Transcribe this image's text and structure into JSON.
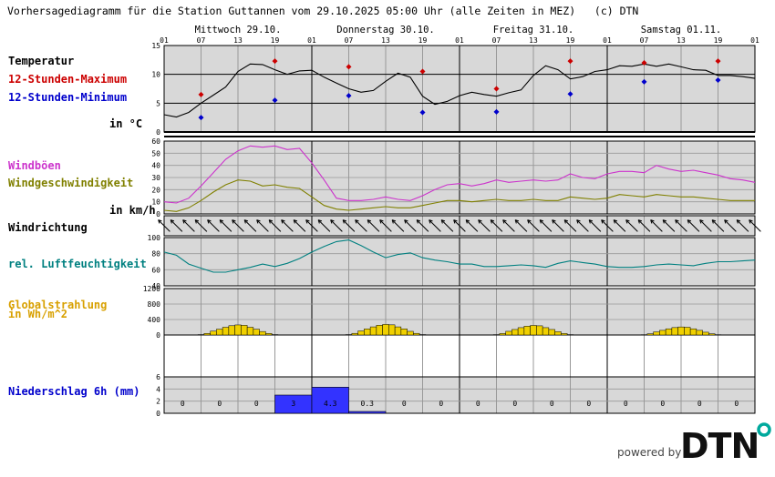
{
  "title": "Vorhersagediagramm für die Station Guttannen vom 29.10.2025 05:00 Uhr (alle Zeiten in MEZ)   (c) DTN",
  "powered_by": "powered by",
  "logo_text": "DTN",
  "colors": {
    "panel_bg": "#d8d8d8",
    "temp_max": "#cc0000",
    "temp_min": "#0000cc",
    "gust": "#cc33cc",
    "wind": "#808000",
    "humidity": "#008080",
    "radiation": "#f0d000",
    "precip": "#3333ff",
    "label_blue": "#0000cc",
    "label_gold": "#d8a000",
    "logo_teal": "#00a99d"
  },
  "days": [
    "Mittwoch 29.10.",
    "Donnerstag 30.10.",
    "Freitag 31.10.",
    "Samstag 01.11."
  ],
  "hour_ticks": [
    "01",
    "07",
    "13",
    "19",
    "01",
    "07",
    "13",
    "19",
    "01",
    "07",
    "13",
    "19",
    "01",
    "07",
    "13",
    "19",
    "01"
  ],
  "labels": {
    "temperature": "Temperatur",
    "max12": "12-Stunden-Maximum",
    "min12": "12-Stunden-Minimum",
    "temp_unit": "in °C",
    "gust": "Windböen",
    "wind": "Windgeschwindigkeit",
    "wind_unit": "in km/h",
    "wind_dir": "Windrichtung",
    "humidity": "rel. Luftfeuchtigkeit",
    "radiation_1": "Globalstrahlung",
    "radiation_2": "in Wh/m^2",
    "precip": "Niederschlag 6h (mm)"
  },
  "chart_data": [
    {
      "type": "line",
      "name": "temperature",
      "x_unit": "hours since 29.10. 01:00",
      "ylim": [
        0,
        15
      ],
      "y_ticks": [
        0,
        5,
        10,
        15
      ],
      "x": [
        0,
        2,
        4,
        6,
        8,
        10,
        12,
        14,
        16,
        18,
        20,
        22,
        24,
        26,
        28,
        30,
        32,
        34,
        36,
        38,
        40,
        42,
        44,
        46,
        48,
        50,
        52,
        54,
        56,
        58,
        60,
        62,
        64,
        66,
        68,
        70,
        72,
        74,
        76,
        78,
        80,
        82,
        84,
        86,
        88,
        90,
        92,
        94,
        96
      ],
      "values": [
        3.0,
        2.6,
        3.4,
        5.0,
        6.4,
        7.8,
        10.5,
        11.8,
        11.7,
        10.8,
        10.0,
        10.6,
        10.7,
        9.5,
        8.5,
        7.5,
        6.9,
        7.2,
        8.8,
        10.2,
        9.5,
        6.2,
        4.8,
        5.3,
        6.3,
        6.9,
        6.5,
        6.2,
        6.8,
        7.3,
        9.8,
        11.5,
        10.8,
        9.2,
        9.6,
        10.5,
        10.8,
        11.5,
        11.4,
        11.8,
        11.4,
        11.8,
        11.3,
        10.8,
        10.7,
        9.8,
        9.8,
        9.6,
        9.3
      ],
      "max12": [
        {
          "x": 6,
          "y": 6.5
        },
        {
          "x": 18,
          "y": 12.3
        },
        {
          "x": 30,
          "y": 11.3
        },
        {
          "x": 42,
          "y": 10.5
        },
        {
          "x": 54,
          "y": 7.5
        },
        {
          "x": 66,
          "y": 12.3
        },
        {
          "x": 78,
          "y": 12.0
        },
        {
          "x": 90,
          "y": 12.3
        }
      ],
      "min12": [
        {
          "x": 6,
          "y": 2.5
        },
        {
          "x": 18,
          "y": 5.5
        },
        {
          "x": 30,
          "y": 6.3
        },
        {
          "x": 42,
          "y": 3.4
        },
        {
          "x": 54,
          "y": 3.5
        },
        {
          "x": 66,
          "y": 6.6
        },
        {
          "x": 78,
          "y": 8.7
        },
        {
          "x": 90,
          "y": 9.0
        }
      ]
    },
    {
      "type": "line",
      "name": "wind",
      "ylim": [
        0,
        60
      ],
      "y_ticks": [
        0,
        10,
        20,
        30,
        40,
        50,
        60
      ],
      "x": [
        0,
        2,
        4,
        6,
        8,
        10,
        12,
        14,
        16,
        18,
        20,
        22,
        24,
        26,
        28,
        30,
        32,
        34,
        36,
        38,
        40,
        42,
        44,
        46,
        48,
        50,
        52,
        54,
        56,
        58,
        60,
        62,
        64,
        66,
        68,
        70,
        72,
        74,
        76,
        78,
        80,
        82,
        84,
        86,
        88,
        90,
        92,
        94,
        96
      ],
      "series": [
        {
          "key": "gust",
          "values": [
            10,
            9,
            13,
            23,
            34,
            45,
            52,
            56,
            55,
            56,
            53,
            54,
            42,
            28,
            13,
            11,
            11,
            12,
            14,
            12,
            11,
            15,
            20,
            24,
            25,
            23,
            25,
            28,
            26,
            27,
            28,
            27,
            28,
            33,
            30,
            29,
            33,
            35,
            35,
            34,
            40,
            37,
            35,
            36,
            34,
            32,
            29,
            28,
            26
          ]
        },
        {
          "key": "wind",
          "values": [
            3,
            2,
            5,
            11,
            18,
            24,
            28,
            27,
            23,
            24,
            22,
            21,
            14,
            7,
            4,
            3,
            4,
            5,
            6,
            5,
            5,
            7,
            9,
            11,
            11,
            10,
            11,
            12,
            11,
            11,
            12,
            11,
            11,
            14,
            13,
            12,
            13,
            16,
            15,
            14,
            16,
            15,
            14,
            14,
            13,
            12,
            11,
            11,
            11
          ]
        }
      ]
    },
    {
      "type": "arrows",
      "name": "wind_direction",
      "x_step": 2,
      "values": [
        "NW",
        "NW",
        "NW",
        "NW",
        "NW",
        "NW",
        "NW",
        "NW",
        "NW",
        "NW",
        "NW",
        "NW",
        "NW",
        "NW",
        "NW",
        "NW",
        "NW",
        "NW",
        "NW",
        "NW",
        "NW",
        "NW",
        "NW",
        "NW",
        "NW",
        "NW",
        "NW",
        "NW",
        "NW",
        "NW",
        "NW",
        "NW",
        "NW",
        "NW",
        "NW",
        "NW",
        "NW",
        "NW",
        "NW",
        "NW",
        "NW",
        "NW",
        "NW",
        "NW",
        "NW",
        "NW",
        "NW",
        "NW",
        "NW"
      ]
    },
    {
      "type": "line",
      "name": "humidity",
      "ylim": [
        40,
        100
      ],
      "y_ticks": [
        40,
        60,
        80,
        100
      ],
      "x": [
        0,
        2,
        4,
        6,
        8,
        10,
        12,
        14,
        16,
        18,
        20,
        22,
        24,
        26,
        28,
        30,
        32,
        34,
        36,
        38,
        40,
        42,
        44,
        46,
        48,
        50,
        52,
        54,
        56,
        58,
        60,
        62,
        64,
        66,
        68,
        70,
        72,
        74,
        76,
        78,
        80,
        82,
        84,
        86,
        88,
        90,
        92,
        94,
        96
      ],
      "values": [
        82,
        78,
        67,
        62,
        57,
        57,
        60,
        63,
        67,
        64,
        68,
        74,
        82,
        89,
        95,
        97,
        90,
        82,
        75,
        79,
        81,
        75,
        72,
        70,
        67,
        67,
        64,
        64,
        65,
        66,
        65,
        63,
        68,
        71,
        69,
        67,
        64,
        63,
        63,
        64,
        66,
        67,
        66,
        65,
        68,
        70,
        70,
        71,
        72
      ]
    },
    {
      "type": "bar",
      "name": "radiation",
      "ylim": [
        0,
        1200
      ],
      "y_ticks": [
        0,
        400,
        800,
        1200
      ],
      "x_step": 1,
      "day_pattern": [
        {
          "x": 6,
          "value": 10
        },
        {
          "x": 7,
          "value": 40
        },
        {
          "x": 8,
          "value": 100
        },
        {
          "x": 9,
          "value": 150
        },
        {
          "x": 10,
          "value": 200
        },
        {
          "x": 11,
          "value": 240
        },
        {
          "x": 12,
          "value": 260
        },
        {
          "x": 13,
          "value": 250
        },
        {
          "x": 14,
          "value": 200
        },
        {
          "x": 15,
          "value": 150
        },
        {
          "x": 16,
          "value": 90
        },
        {
          "x": 17,
          "value": 40
        },
        {
          "x": 18,
          "value": 10
        }
      ],
      "day_scale": [
        1,
        1.05,
        0.95,
        0.8
      ]
    },
    {
      "type": "bar",
      "name": "precipitation",
      "ylim": [
        0,
        6
      ],
      "y_ticks": [
        0,
        2,
        4,
        6
      ],
      "x_step": 6,
      "values": [
        0,
        0,
        0,
        3,
        4.3,
        0.3,
        0,
        0,
        0,
        0,
        0,
        0,
        0,
        0,
        0,
        0
      ],
      "value_labels": [
        "0",
        "0",
        "0",
        "3",
        "4.3",
        "0.3",
        "0",
        "0",
        "0",
        "0",
        "0",
        "0",
        "0",
        "0",
        "0",
        "0"
      ]
    }
  ]
}
